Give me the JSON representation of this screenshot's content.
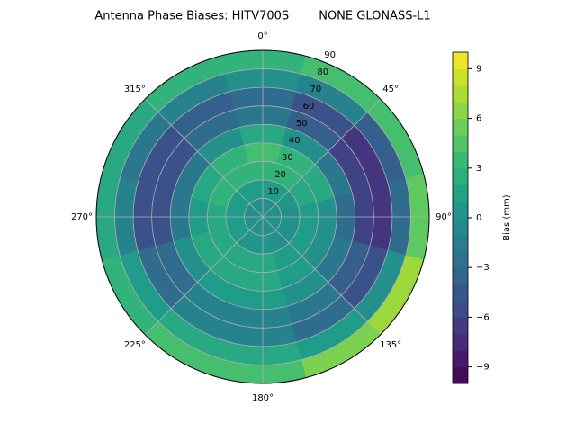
{
  "chart_data": {
    "type": "polar-contour",
    "title": "Antenna Phase Biases: HITV700S        NONE GLONASS-L1",
    "azimuth": [
      0,
      30,
      60,
      90,
      120,
      150,
      180,
      210,
      240,
      270,
      300,
      330
    ],
    "zenith": [
      5,
      15,
      25,
      35,
      45,
      55,
      65,
      75,
      85
    ],
    "values": [
      [
        0,
        0,
        0,
        0,
        0,
        0,
        0,
        0,
        0,
        0,
        0,
        0
      ],
      [
        1,
        1,
        0.5,
        0,
        0,
        0,
        0.5,
        0.5,
        1,
        1,
        1,
        1
      ],
      [
        3,
        3,
        2,
        1,
        1,
        1,
        2,
        2,
        2,
        2,
        3,
        3
      ],
      [
        4,
        3,
        2,
        0,
        0,
        1,
        2,
        2,
        2,
        1,
        2,
        3
      ],
      [
        2,
        0,
        -2,
        -3,
        -2,
        0,
        1,
        1,
        0,
        -2,
        -2,
        0
      ],
      [
        -2,
        -4,
        -6,
        -6,
        -4,
        -2,
        -1,
        -1,
        -3,
        -5,
        -5,
        -3
      ],
      [
        -3,
        -5,
        -7,
        -7,
        -5,
        -3,
        -1,
        -1,
        -3,
        -5,
        -5,
        -4
      ],
      [
        0,
        -1,
        -4,
        -3,
        0,
        1,
        2,
        2,
        1,
        -1,
        -2,
        -1
      ],
      [
        3,
        4,
        4,
        5,
        7,
        6,
        4,
        4,
        3,
        2,
        2,
        3
      ]
    ],
    "rlim": [
      0,
      90
    ],
    "rticks": [
      10,
      20,
      30,
      40,
      50,
      60,
      70,
      80,
      90
    ],
    "thetaticks": [
      {
        "value": 0,
        "label": "0°"
      },
      {
        "value": 45,
        "label": "45°"
      },
      {
        "value": 90,
        "label": "90°"
      },
      {
        "value": 135,
        "label": "135°"
      },
      {
        "value": 180,
        "label": "180°"
      },
      {
        "value": 225,
        "label": "225°"
      },
      {
        "value": 270,
        "label": "270°"
      },
      {
        "value": 315,
        "label": "315°"
      }
    ],
    "colorbar_label": "Bias (mm)",
    "clim": [
      -10,
      10
    ],
    "cticks": [
      {
        "value": -9,
        "label": "−9"
      },
      {
        "value": -6,
        "label": "−6"
      },
      {
        "value": -3,
        "label": "−3"
      },
      0,
      3,
      6,
      9
    ],
    "colormap": [
      "#440154",
      "#482878",
      "#3e4989",
      "#31688e",
      "#26828e",
      "#1f9e89",
      "#35b779",
      "#6ece58",
      "#b5de2b",
      "#fde725"
    ],
    "grid": true
  }
}
